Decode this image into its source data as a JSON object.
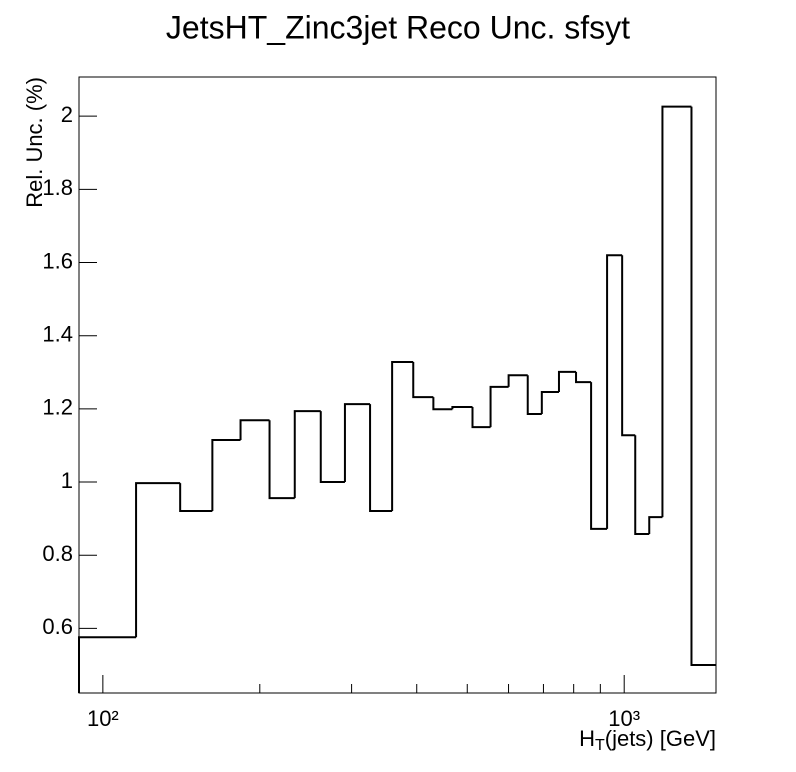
{
  "chart_data": {
    "type": "histogram",
    "title": "JetsHT_Zinc3jet Reco Unc. sfsyt",
    "x_label": {
      "main": "H",
      "sub": "T",
      "rest": "(jets) [GeV]"
    },
    "y_label": "Rel. Unc. (%)",
    "bins": [
      90,
      115.8,
      140.7,
      162.2,
      183.7,
      208.8,
      233.4,
      261.8,
      291.3,
      325.5,
      358.8,
      393.9,
      430.5,
      468.2,
      511.7,
      554.2,
      600.2,
      653.1,
      695,
      749.7,
      808.4,
      864,
      927.2,
      991,
      1050,
      1117,
      1184,
      1346,
      1500
    ],
    "counts": [
      0.576,
      0.997,
      0.921,
      1.115,
      1.169,
      0.956,
      1.194,
      1.0,
      1.213,
      0.921,
      1.328,
      1.232,
      1.199,
      1.205,
      1.15,
      1.26,
      1.292,
      1.186,
      1.246,
      1.301,
      1.273,
      0.872,
      1.62,
      1.128,
      0.858,
      0.904,
      2.026,
      0.5
    ],
    "color": "#000000",
    "xlog": true,
    "xlim": [
      90,
      1500
    ],
    "xticks": [
      {
        "value": 100,
        "label": "10²"
      },
      {
        "value": 1000,
        "label": "10³"
      }
    ],
    "xminorticks": [
      200,
      300,
      400,
      500,
      600,
      700,
      800,
      900
    ],
    "ylim": [
      0.4235,
      2.107
    ],
    "yticks": [
      0.6,
      0.8,
      1,
      1.2,
      1.4,
      1.6,
      1.8,
      2
    ]
  }
}
